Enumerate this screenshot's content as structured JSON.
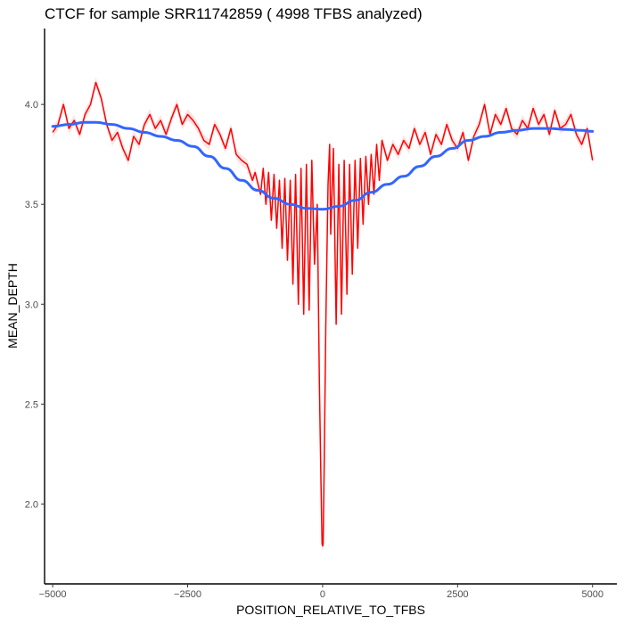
{
  "chart_data": {
    "type": "line",
    "title": "CTCF for sample SRR11742859 ( 4998 TFBS analyzed)",
    "xlabel": "POSITION_RELATIVE_TO_TFBS",
    "ylabel": "MEAN_DEPTH",
    "xlim": [
      -5150,
      5450
    ],
    "ylim": [
      1.6,
      4.38
    ],
    "x_ticks": [
      -5000,
      -2500,
      0,
      2500,
      5000
    ],
    "x_tick_labels": [
      "−5000",
      "−2500",
      "0",
      "2500",
      "5000"
    ],
    "y_ticks": [
      2.0,
      2.5,
      3.0,
      3.5,
      4.0
    ],
    "y_tick_labels": [
      "2.0",
      "2.5",
      "3.0",
      "3.5",
      "4.0"
    ],
    "grid": false,
    "legend": "none",
    "series": [
      {
        "kind": "raw",
        "color": "#ff0000",
        "band_color": "#ffcccc",
        "points": [
          [
            -5000,
            3.86
          ],
          [
            -4900,
            3.9
          ],
          [
            -4800,
            4.0
          ],
          [
            -4700,
            3.88
          ],
          [
            -4600,
            3.92
          ],
          [
            -4500,
            3.85
          ],
          [
            -4400,
            3.95
          ],
          [
            -4300,
            4.0
          ],
          [
            -4200,
            4.11
          ],
          [
            -4100,
            4.03
          ],
          [
            -4000,
            3.9
          ],
          [
            -3900,
            3.82
          ],
          [
            -3800,
            3.86
          ],
          [
            -3700,
            3.78
          ],
          [
            -3600,
            3.72
          ],
          [
            -3500,
            3.84
          ],
          [
            -3400,
            3.8
          ],
          [
            -3300,
            3.9
          ],
          [
            -3200,
            3.95
          ],
          [
            -3100,
            3.88
          ],
          [
            -3000,
            3.92
          ],
          [
            -2900,
            3.85
          ],
          [
            -2800,
            3.93
          ],
          [
            -2700,
            4.0
          ],
          [
            -2600,
            3.9
          ],
          [
            -2500,
            3.95
          ],
          [
            -2400,
            3.92
          ],
          [
            -2300,
            3.88
          ],
          [
            -2200,
            3.82
          ],
          [
            -2100,
            3.8
          ],
          [
            -2000,
            3.9
          ],
          [
            -1900,
            3.85
          ],
          [
            -1800,
            3.78
          ],
          [
            -1700,
            3.88
          ],
          [
            -1600,
            3.75
          ],
          [
            -1500,
            3.72
          ],
          [
            -1400,
            3.7
          ],
          [
            -1300,
            3.62
          ],
          [
            -1250,
            3.66
          ],
          [
            -1150,
            3.55
          ],
          [
            -1100,
            3.68
          ],
          [
            -1050,
            3.5
          ],
          [
            -1000,
            3.66
          ],
          [
            -950,
            3.42
          ],
          [
            -900,
            3.65
          ],
          [
            -850,
            3.38
          ],
          [
            -800,
            3.62
          ],
          [
            -750,
            3.28
          ],
          [
            -700,
            3.63
          ],
          [
            -650,
            3.22
          ],
          [
            -600,
            3.62
          ],
          [
            -550,
            3.1
          ],
          [
            -500,
            3.65
          ],
          [
            -450,
            3.0
          ],
          [
            -400,
            3.68
          ],
          [
            -350,
            2.95
          ],
          [
            -300,
            3.7
          ],
          [
            -250,
            2.97
          ],
          [
            -200,
            3.72
          ],
          [
            -150,
            3.2
          ],
          [
            -100,
            3.5
          ],
          [
            -60,
            2.6
          ],
          [
            -30,
            2.1
          ],
          [
            -10,
            1.8
          ],
          [
            0,
            1.79
          ],
          [
            10,
            1.8
          ],
          [
            30,
            2.2
          ],
          [
            60,
            2.9
          ],
          [
            100,
            3.6
          ],
          [
            130,
            3.8
          ],
          [
            150,
            3.35
          ],
          [
            200,
            3.78
          ],
          [
            250,
            2.9
          ],
          [
            300,
            3.7
          ],
          [
            350,
            2.95
          ],
          [
            400,
            3.72
          ],
          [
            450,
            3.05
          ],
          [
            500,
            3.7
          ],
          [
            550,
            3.15
          ],
          [
            600,
            3.72
          ],
          [
            650,
            3.28
          ],
          [
            700,
            3.73
          ],
          [
            750,
            3.4
          ],
          [
            800,
            3.74
          ],
          [
            850,
            3.5
          ],
          [
            900,
            3.75
          ],
          [
            950,
            3.55
          ],
          [
            1000,
            3.8
          ],
          [
            1050,
            3.62
          ],
          [
            1100,
            3.82
          ],
          [
            1200,
            3.72
          ],
          [
            1300,
            3.8
          ],
          [
            1400,
            3.75
          ],
          [
            1500,
            3.82
          ],
          [
            1600,
            3.78
          ],
          [
            1700,
            3.88
          ],
          [
            1800,
            3.8
          ],
          [
            1900,
            3.86
          ],
          [
            2000,
            3.75
          ],
          [
            2100,
            3.85
          ],
          [
            2200,
            3.8
          ],
          [
            2300,
            3.9
          ],
          [
            2400,
            3.82
          ],
          [
            2500,
            3.78
          ],
          [
            2600,
            3.86
          ],
          [
            2700,
            3.72
          ],
          [
            2800,
            3.84
          ],
          [
            2900,
            3.9
          ],
          [
            3000,
            4.0
          ],
          [
            3100,
            3.85
          ],
          [
            3200,
            3.95
          ],
          [
            3300,
            3.9
          ],
          [
            3400,
            3.98
          ],
          [
            3500,
            3.88
          ],
          [
            3600,
            3.85
          ],
          [
            3700,
            3.92
          ],
          [
            3800,
            3.88
          ],
          [
            3900,
            3.98
          ],
          [
            4000,
            3.9
          ],
          [
            4100,
            3.95
          ],
          [
            4200,
            3.85
          ],
          [
            4300,
            3.97
          ],
          [
            4400,
            3.88
          ],
          [
            4500,
            3.9
          ],
          [
            4600,
            3.95
          ],
          [
            4700,
            3.85
          ],
          [
            4800,
            3.8
          ],
          [
            4900,
            3.88
          ],
          [
            5000,
            3.72
          ]
        ]
      },
      {
        "kind": "smooth",
        "color": "#3366ff",
        "points": [
          [
            -5000,
            3.89
          ],
          [
            -4700,
            3.9
          ],
          [
            -4400,
            3.91
          ],
          [
            -4200,
            3.91
          ],
          [
            -3900,
            3.9
          ],
          [
            -3600,
            3.88
          ],
          [
            -3300,
            3.86
          ],
          [
            -3000,
            3.84
          ],
          [
            -2700,
            3.82
          ],
          [
            -2400,
            3.79
          ],
          [
            -2100,
            3.74
          ],
          [
            -1800,
            3.68
          ],
          [
            -1500,
            3.62
          ],
          [
            -1200,
            3.57
          ],
          [
            -900,
            3.53
          ],
          [
            -600,
            3.5
          ],
          [
            -300,
            3.48
          ],
          [
            0,
            3.475
          ],
          [
            300,
            3.49
          ],
          [
            600,
            3.52
          ],
          [
            900,
            3.56
          ],
          [
            1200,
            3.6
          ],
          [
            1500,
            3.64
          ],
          [
            1800,
            3.69
          ],
          [
            2100,
            3.74
          ],
          [
            2400,
            3.78
          ],
          [
            2700,
            3.82
          ],
          [
            3000,
            3.84
          ],
          [
            3300,
            3.86
          ],
          [
            3600,
            3.87
          ],
          [
            3900,
            3.88
          ],
          [
            4200,
            3.88
          ],
          [
            4500,
            3.875
          ],
          [
            4800,
            3.87
          ],
          [
            5000,
            3.865
          ]
        ]
      }
    ]
  }
}
